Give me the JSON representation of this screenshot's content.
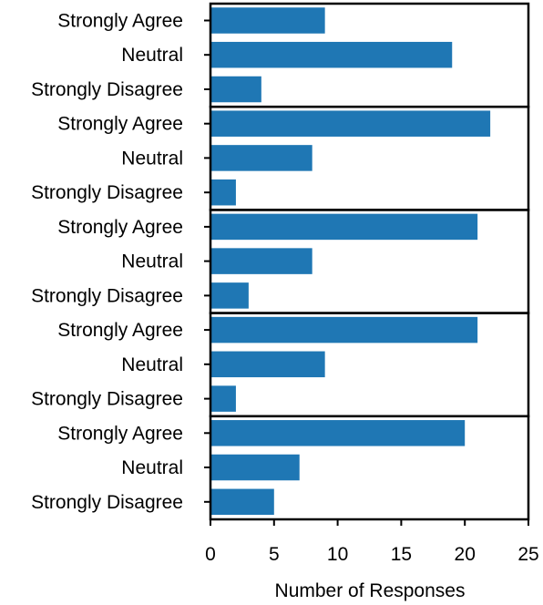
{
  "chart_data": {
    "type": "bar",
    "orientation": "horizontal",
    "bar_color": "#1f77b4",
    "xlabel": "Number of Responses",
    "xlim": [
      0,
      25
    ],
    "xticks": [
      0,
      5,
      10,
      15,
      20,
      25
    ],
    "xtick_labels": [
      "0",
      "5",
      "10",
      "15",
      "20",
      "25"
    ],
    "grid": false,
    "panels": [
      {
        "categories": [
          "Strongly Agree",
          "Neutral",
          "Strongly Disagree"
        ],
        "values": [
          9,
          19,
          4
        ]
      },
      {
        "categories": [
          "Strongly Agree",
          "Neutral",
          "Strongly Disagree"
        ],
        "values": [
          22,
          8,
          2
        ]
      },
      {
        "categories": [
          "Strongly Agree",
          "Neutral",
          "Strongly Disagree"
        ],
        "values": [
          21,
          8,
          3
        ]
      },
      {
        "categories": [
          "Strongly Agree",
          "Neutral",
          "Strongly Disagree"
        ],
        "values": [
          21,
          9,
          2
        ]
      },
      {
        "categories": [
          "Strongly Agree",
          "Neutral",
          "Strongly Disagree"
        ],
        "values": [
          20,
          7,
          5
        ]
      }
    ]
  }
}
